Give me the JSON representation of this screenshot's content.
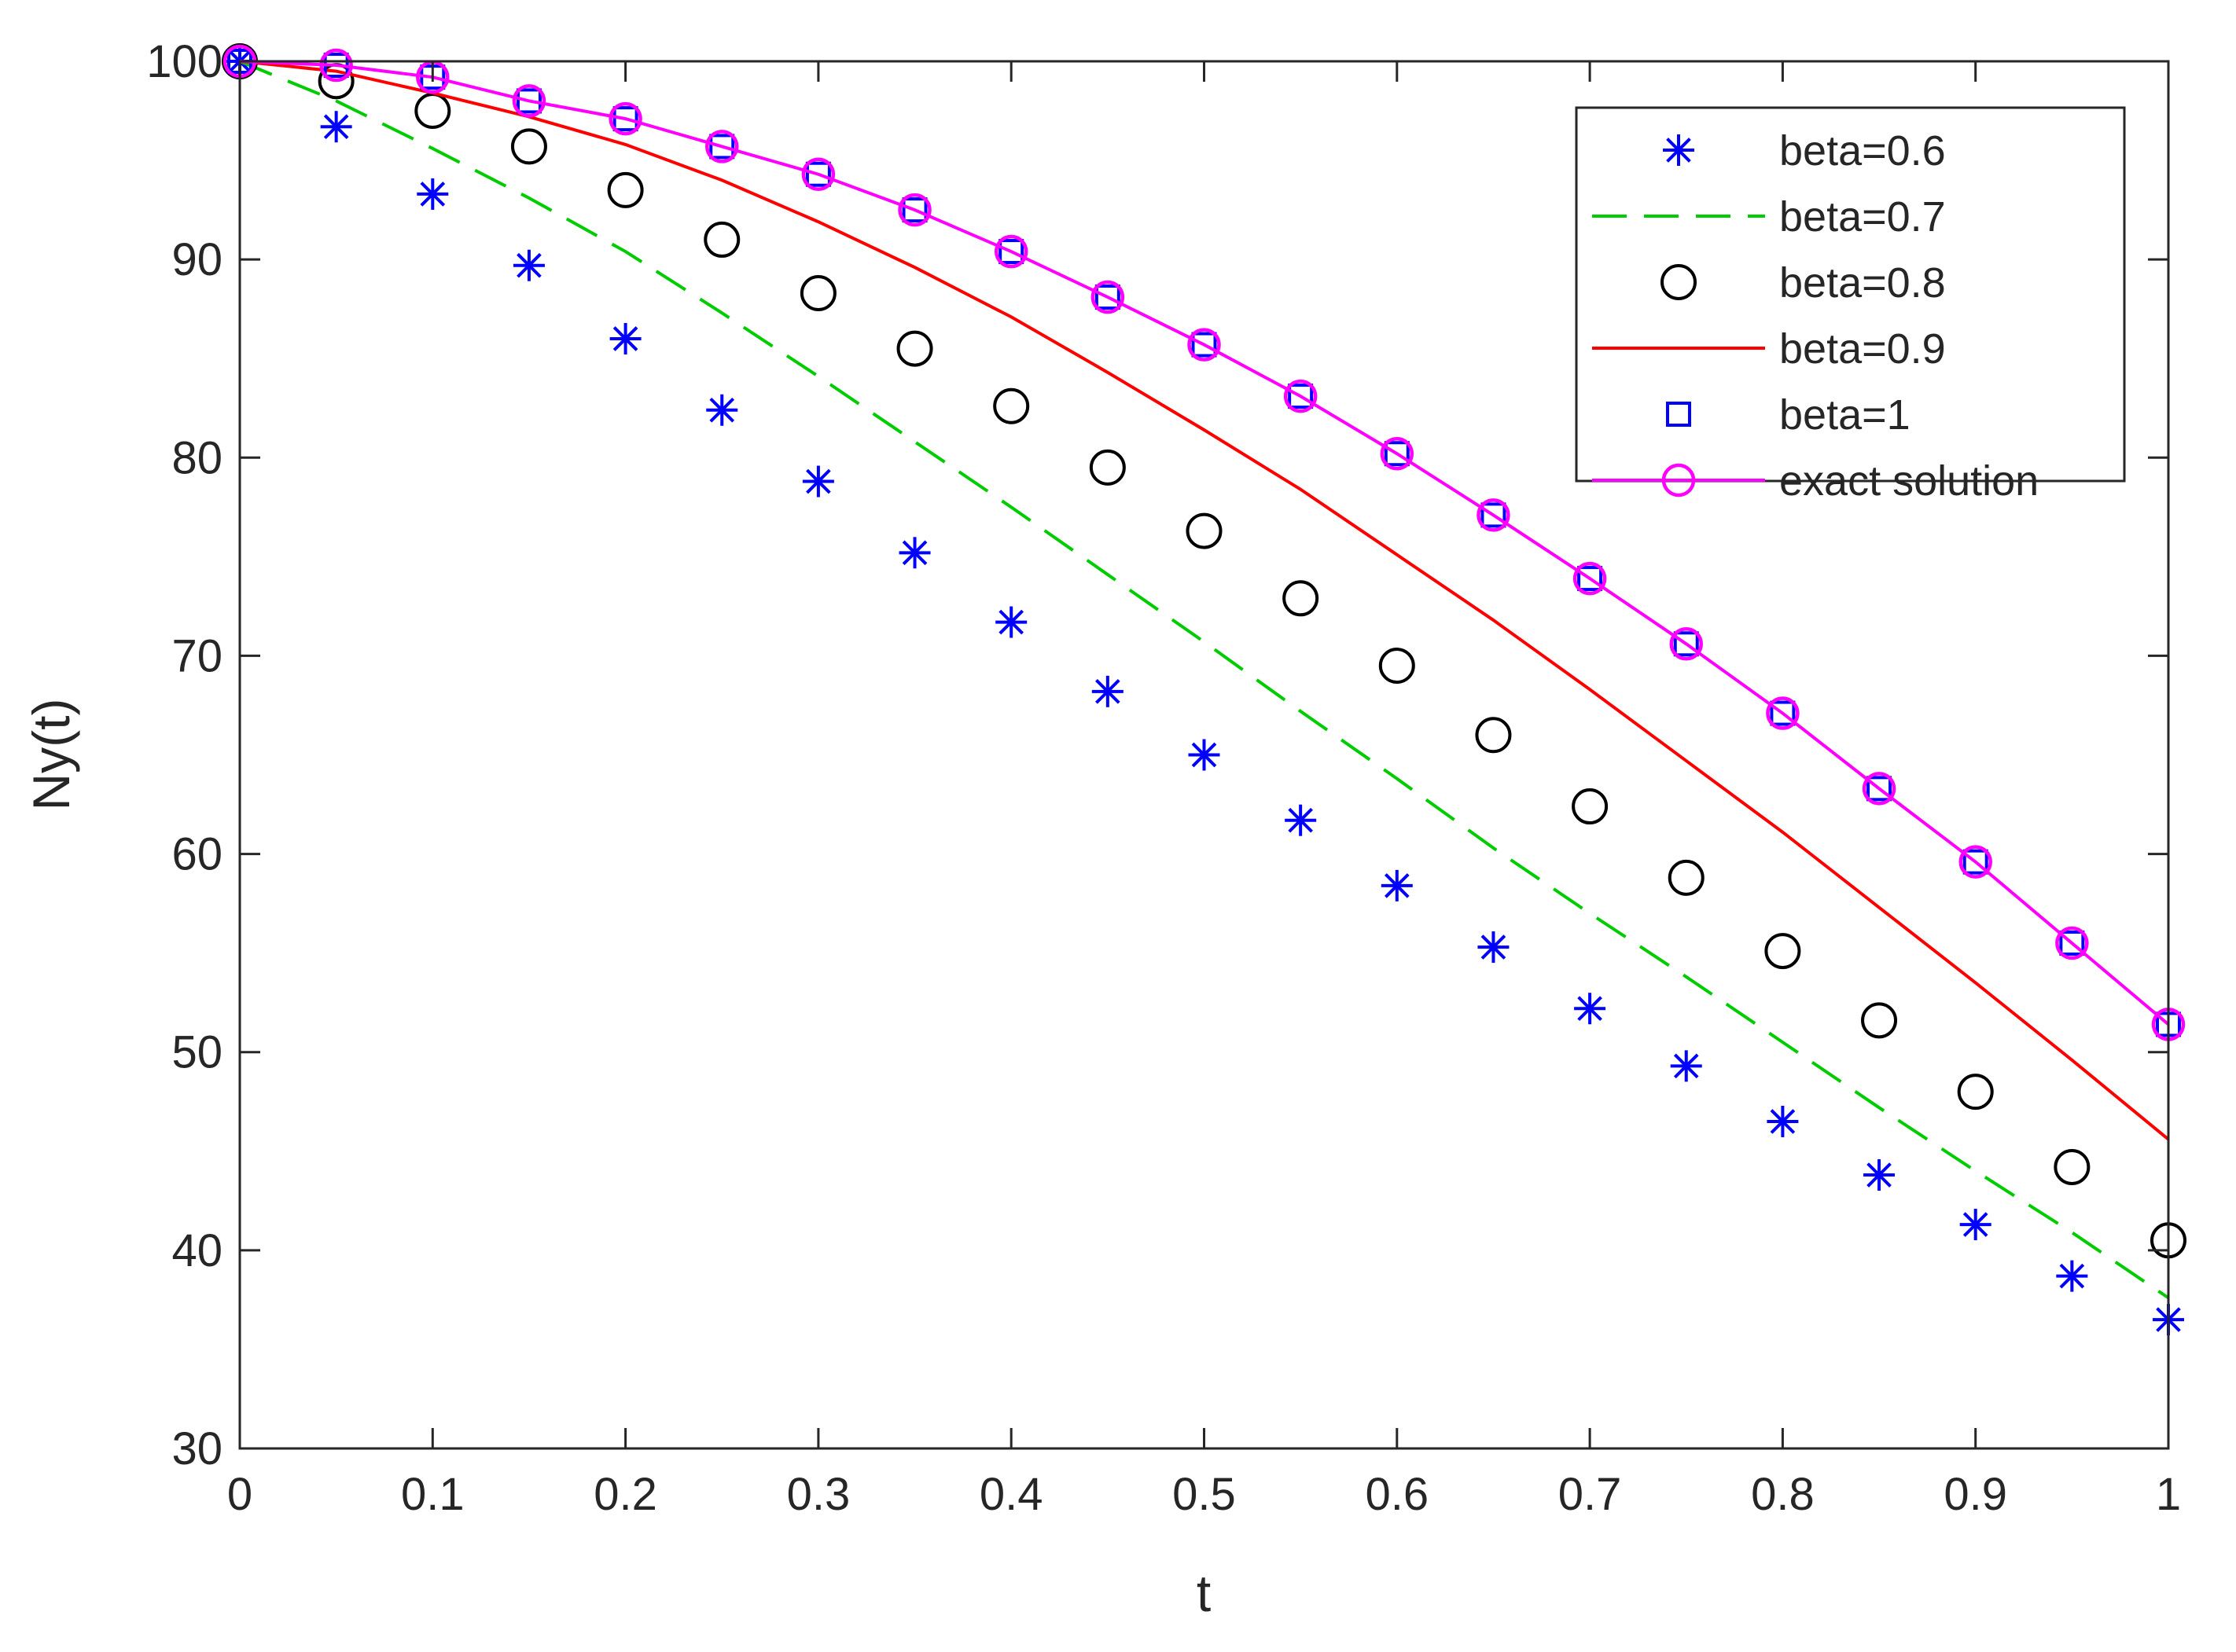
{
  "chart_data": {
    "type": "line",
    "title": "",
    "xlabel": "t",
    "ylabel": "Ny(t)",
    "xlim": [
      0,
      1
    ],
    "ylim": [
      30,
      100
    ],
    "xticks": [
      0,
      0.1,
      0.2,
      0.3,
      0.4,
      0.5,
      0.6,
      0.7,
      0.8,
      0.9,
      1
    ],
    "xtick_labels": [
      "0",
      "0.1",
      "0.2",
      "0.3",
      "0.4",
      "0.5",
      "0.6",
      "0.7",
      "0.8",
      "0.9",
      "1"
    ],
    "yticks": [
      30,
      40,
      50,
      60,
      70,
      80,
      90,
      100
    ],
    "ytick_labels": [
      "30",
      "40",
      "50",
      "60",
      "70",
      "80",
      "90",
      "100"
    ],
    "grid": false,
    "legend_position": "top-right",
    "x": [
      0,
      0.05,
      0.1,
      0.15,
      0.2,
      0.25,
      0.3,
      0.35,
      0.4,
      0.45,
      0.5,
      0.55,
      0.6,
      0.65,
      0.7,
      0.75,
      0.8,
      0.85,
      0.9,
      0.95,
      1
    ],
    "series": [
      {
        "name": "beta=0.6",
        "style": "asterisk",
        "color": "#0000ff",
        "values": [
          100,
          96.7,
          93.3,
          89.7,
          86.0,
          82.4,
          78.8,
          75.2,
          71.7,
          68.2,
          65.0,
          61.7,
          58.4,
          55.3,
          52.2,
          49.3,
          46.5,
          43.8,
          41.3,
          38.7,
          36.5
        ]
      },
      {
        "name": "beta=0.7",
        "style": "dashed",
        "color": "#00cc00",
        "values": [
          100,
          98.0,
          95.6,
          93.1,
          90.4,
          87.3,
          84.1,
          80.8,
          77.5,
          74.1,
          70.7,
          67.2,
          63.8,
          60.3,
          57.0,
          53.8,
          50.5,
          47.2,
          44.0,
          40.9,
          37.6
        ]
      },
      {
        "name": "beta=0.8",
        "style": "circle",
        "color": "#000000",
        "values": [
          100,
          99.0,
          97.5,
          95.7,
          93.5,
          91.0,
          88.3,
          85.5,
          82.6,
          79.5,
          76.3,
          72.9,
          69.5,
          66.0,
          62.4,
          58.8,
          55.1,
          51.6,
          48.0,
          44.2,
          40.5
        ]
      },
      {
        "name": "beta=0.9",
        "style": "solid",
        "color": "#ff0000",
        "values": [
          100,
          99.5,
          98.4,
          97.2,
          95.8,
          94.0,
          91.9,
          89.6,
          87.1,
          84.3,
          81.4,
          78.4,
          75.1,
          71.8,
          68.3,
          64.7,
          61.1,
          57.3,
          53.5,
          49.6,
          45.6
        ]
      },
      {
        "name": "beta=1",
        "style": "square",
        "color": "#0000ff",
        "values": [
          100,
          99.8,
          99.2,
          98.0,
          97.1,
          95.7,
          94.3,
          92.5,
          90.4,
          88.1,
          85.7,
          83.1,
          80.2,
          77.1,
          73.9,
          70.6,
          67.1,
          63.3,
          59.6,
          55.5,
          51.4
        ]
      },
      {
        "name": "exact solution",
        "style": "solid-circle",
        "color": "#ff00ff",
        "values": [
          100,
          99.8,
          99.2,
          98.0,
          97.1,
          95.7,
          94.3,
          92.5,
          90.4,
          88.1,
          85.7,
          83.1,
          80.2,
          77.1,
          73.9,
          70.6,
          67.1,
          63.3,
          59.6,
          55.5,
          51.4
        ]
      }
    ]
  }
}
